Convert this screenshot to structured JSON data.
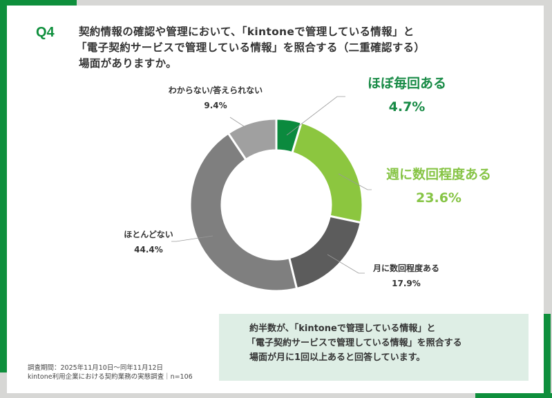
{
  "header": {
    "question_number": "Q4",
    "question_lines": [
      "契約情報の確認や管理において、「kintoneで管理している情報」と",
      "「電子契約サービスで管理している情報」を照合する（二重確認する）",
      "場面がありますか。"
    ]
  },
  "colors": {
    "brand_green": "#0e8f3c",
    "slice_almost_every_time": "#0b8a3e",
    "slice_weekly": "#8cc63f",
    "slice_monthly": "#5c5c5c",
    "slice_rarely": "#7f7f7f",
    "slice_unknown": "#a0a0a0",
    "summary_bg": "#deeee5",
    "page_bg": "#d7d7d5"
  },
  "chart_data": {
    "type": "pie",
    "subtype": "donut",
    "title": "契約情報の確認や管理において、「kintoneで管理している情報」と「電子契約サービスで管理している情報」を照合する（二重確認する）場面がありますか。",
    "categories": [
      "ほぼ毎回ある",
      "週に数回程度ある",
      "月に数回程度ある",
      "ほとんどない",
      "わからない/答えられない"
    ],
    "values": [
      4.7,
      23.6,
      17.9,
      44.4,
      9.4
    ],
    "unit": "%",
    "start_angle_deg": 0,
    "direction": "clockwise",
    "legend": "none (data labels with leader lines)",
    "n": 106
  },
  "labels": {
    "almost_every_time": {
      "name": "ほぼ毎回ある",
      "value": "4.7%"
    },
    "weekly": {
      "name": "週に数回程度ある",
      "value": "23.6%"
    },
    "monthly": {
      "name": "月に数回程度ある",
      "value": "17.9%"
    },
    "rarely": {
      "name": "ほとんどない",
      "value": "44.4%"
    },
    "unknown": {
      "name": "わからない/答えられない",
      "value": "9.4%"
    }
  },
  "summary": {
    "lines": [
      "約半数が、「kintoneで管理している情報」と",
      "「電子契約サービスで管理している情報」を照合する",
      "場面が月に1回以上あると回答しています。"
    ]
  },
  "footnote": {
    "period": "調査期間：2025年11月10日～同年11月12日",
    "source": "kintone利用企業における契約業務の実態調査｜n=106"
  }
}
